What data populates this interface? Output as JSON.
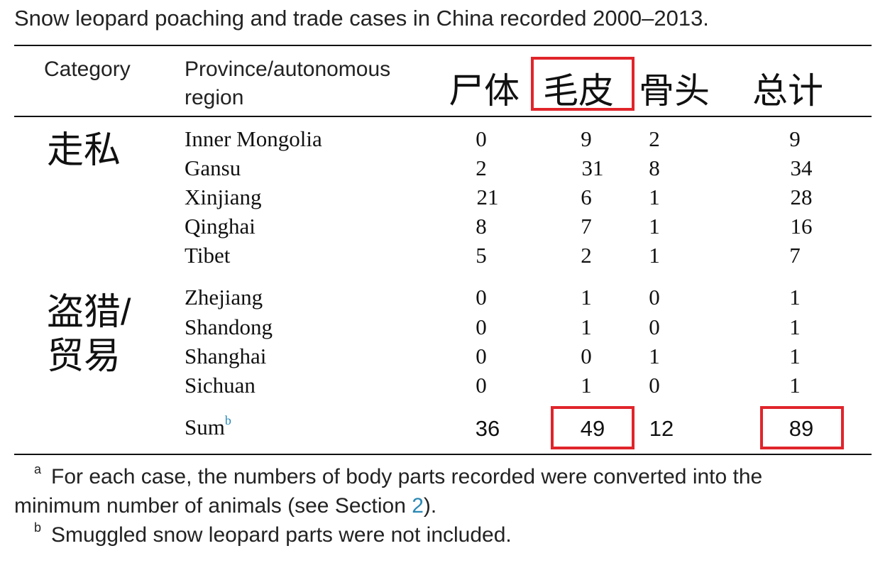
{
  "caption": "Snow leopard poaching and trade cases in China recorded 2000–2013.",
  "headers": {
    "category": "Category",
    "province": "Province/autonomous region",
    "col1": "尸体",
    "col2": "毛皮",
    "col3": "骨头",
    "col4": "总计"
  },
  "categories": {
    "smuggling": "走私",
    "poaching_line1": "盗猎/",
    "poaching_line2": "贸易"
  },
  "rows": [
    {
      "province": "Inner Mongolia",
      "c1": "0",
      "c2": "9",
      "c3": "2",
      "c4": "9"
    },
    {
      "province": "Gansu",
      "c1": "2",
      "c2": "31",
      "c3": "8",
      "c4": "34"
    },
    {
      "province": "Xinjiang",
      "c1": "21",
      "c2": "6",
      "c3": "1",
      "c4": "28"
    },
    {
      "province": "Qinghai",
      "c1": "8",
      "c2": "7",
      "c3": "1",
      "c4": "16"
    },
    {
      "province": "Tibet",
      "c1": "5",
      "c2": "2",
      "c3": "1",
      "c4": "7"
    },
    {
      "province": "Zhejiang",
      "c1": "0",
      "c2": "1",
      "c3": "0",
      "c4": "1"
    },
    {
      "province": "Shandong",
      "c1": "0",
      "c2": "1",
      "c3": "0",
      "c4": "1"
    },
    {
      "province": "Shanghai",
      "c1": "0",
      "c2": "0",
      "c3": "1",
      "c4": "1"
    },
    {
      "province": "Sichuan",
      "c1": "0",
      "c2": "1",
      "c3": "0",
      "c4": "1"
    }
  ],
  "sum": {
    "label": "Sum",
    "marker": "b",
    "c1": "36",
    "c2": "49",
    "c3": "12",
    "c4": "89"
  },
  "footnotes": {
    "a_marker": "a",
    "a_text_1": "For each case, the numbers of body parts recorded were converted into the",
    "a_text_2a": "minimum number of animals (see Section ",
    "a_link": "2",
    "a_text_2b": ").",
    "b_marker": "b",
    "b_text": "Smuggled snow leopard parts were not included."
  },
  "colors": {
    "highlight_box": "#e0252b",
    "link": "#2a88b4"
  }
}
